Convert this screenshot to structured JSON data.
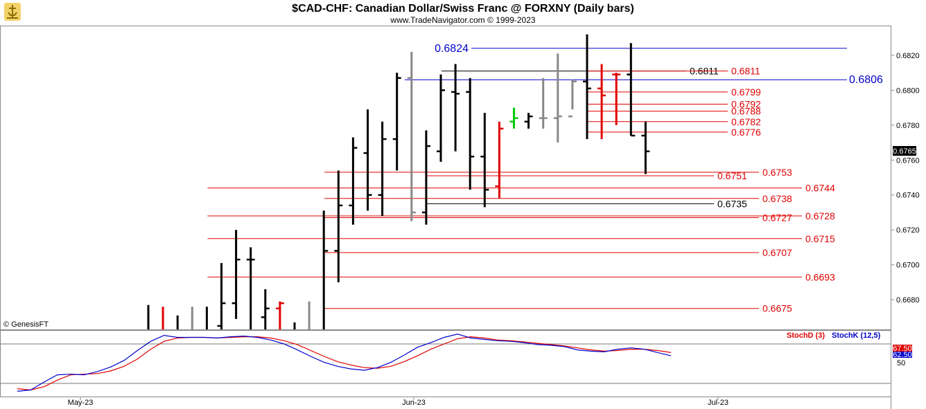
{
  "chart_data": {
    "type": "ohlc",
    "title": "$CAD-CHF:  Canadian Dollar/Swiss Franc @ FORXNY  (Daily bars)",
    "subtitle": "www.TradeNavigator.com © 1999-2023",
    "watermark": "© GenesisFT",
    "price_axis": {
      "ticks": [
        "0.6680",
        "0.6700",
        "0.6720",
        "0.6740",
        "0.6760",
        "0.6780",
        "0.6800",
        "0.6820"
      ],
      "range": [
        0.6663,
        0.6837
      ],
      "last_price": "0.6765"
    },
    "x_axis": {
      "ticks": [
        "May-23",
        "Jun-23",
        "Jul-23"
      ]
    },
    "bars": [
      {
        "h": 0.6677,
        "l": 0.665,
        "o": 0.666,
        "c": 0.666,
        "color": "#000000"
      },
      {
        "h": 0.6676,
        "l": 0.665,
        "o": 0.666,
        "c": 0.666,
        "color": "#e00000"
      },
      {
        "h": 0.6671,
        "l": 0.665,
        "o": 0.666,
        "c": 0.666,
        "color": "#000000"
      },
      {
        "h": 0.6676,
        "l": 0.665,
        "o": 0.666,
        "c": 0.666,
        "color": "#888888"
      },
      {
        "h": 0.6676,
        "l": 0.665,
        "o": 0.666,
        "c": 0.666,
        "color": "#000000"
      },
      {
        "h": 0.6701,
        "l": 0.665,
        "o": 0.6665,
        "c": 0.6678,
        "color": "#000000"
      },
      {
        "h": 0.672,
        "l": 0.6669,
        "o": 0.6678,
        "c": 0.6703,
        "color": "#000000"
      },
      {
        "h": 0.671,
        "l": 0.665,
        "o": 0.6703,
        "c": 0.6703,
        "color": "#000000"
      },
      {
        "h": 0.6686,
        "l": 0.6663,
        "o": 0.667,
        "c": 0.6675,
        "color": "#000000"
      },
      {
        "h": 0.6679,
        "l": 0.6663,
        "o": 0.6675,
        "c": 0.6678,
        "color": "#e00000"
      },
      {
        "h": 0.6667,
        "l": 0.6655,
        "o": 0.666,
        "c": 0.666,
        "color": "#000000"
      },
      {
        "h": 0.6679,
        "l": 0.665,
        "o": 0.666,
        "c": 0.666,
        "color": "#888888"
      },
      {
        "h": 0.6731,
        "l": 0.665,
        "o": 0.666,
        "c": 0.6708,
        "color": "#000000"
      },
      {
        "h": 0.6754,
        "l": 0.669,
        "o": 0.6708,
        "c": 0.6734,
        "color": "#000000"
      },
      {
        "h": 0.6773,
        "l": 0.6723,
        "o": 0.6734,
        "c": 0.6767,
        "color": "#000000"
      },
      {
        "h": 0.6789,
        "l": 0.6731,
        "o": 0.6764,
        "c": 0.674,
        "color": "#000000"
      },
      {
        "h": 0.6782,
        "l": 0.6728,
        "o": 0.674,
        "c": 0.6772,
        "color": "#000000"
      },
      {
        "h": 0.681,
        "l": 0.6754,
        "o": 0.6772,
        "c": 0.6807,
        "color": "#000000"
      },
      {
        "h": 0.6822,
        "l": 0.6725,
        "o": 0.6807,
        "c": 0.673,
        "color": "#888888"
      },
      {
        "h": 0.6777,
        "l": 0.6723,
        "o": 0.673,
        "c": 0.6768,
        "color": "#000000"
      },
      {
        "h": 0.6809,
        "l": 0.6759,
        "o": 0.6765,
        "c": 0.68,
        "color": "#000000"
      },
      {
        "h": 0.6815,
        "l": 0.6765,
        "o": 0.6799,
        "c": 0.6798,
        "color": "#000000"
      },
      {
        "h": 0.6807,
        "l": 0.6743,
        "o": 0.6799,
        "c": 0.6762,
        "color": "#000000"
      },
      {
        "h": 0.6787,
        "l": 0.6733,
        "o": 0.6762,
        "c": 0.6743,
        "color": "#000000"
      },
      {
        "h": 0.6782,
        "l": 0.6738,
        "o": 0.6745,
        "c": 0.6778,
        "color": "#e00000"
      },
      {
        "h": 0.679,
        "l": 0.6778,
        "o": 0.6782,
        "c": 0.6784,
        "color": "#00cc00"
      },
      {
        "h": 0.6787,
        "l": 0.6778,
        "o": 0.6782,
        "c": 0.6785,
        "color": "#000000"
      },
      {
        "h": 0.6807,
        "l": 0.6778,
        "o": 0.6784,
        "c": 0.6784,
        "color": "#888888"
      },
      {
        "h": 0.6821,
        "l": 0.677,
        "o": 0.6784,
        "c": 0.6785,
        "color": "#888888"
      },
      {
        "h": 0.6806,
        "l": 0.6789,
        "o": 0.6785,
        "c": 0.6805,
        "color": "#888888"
      },
      {
        "h": 0.6832,
        "l": 0.6772,
        "o": 0.6805,
        "c": 0.6801,
        "color": "#000000"
      },
      {
        "h": 0.6815,
        "l": 0.6772,
        "o": 0.6801,
        "c": 0.6797,
        "color": "#e00000"
      },
      {
        "h": 0.681,
        "l": 0.678,
        "o": 0.6809,
        "c": 0.6809,
        "color": "#e00000"
      },
      {
        "h": 0.6827,
        "l": 0.6774,
        "o": 0.6809,
        "c": 0.6774,
        "color": "#000000"
      },
      {
        "h": 0.6782,
        "l": 0.6752,
        "o": 0.6774,
        "c": 0.6765,
        "color": "#000000"
      }
    ],
    "levels": [
      {
        "value": 0.6824,
        "label": "0.6824",
        "color": "#0000cc",
        "style": "blue-major",
        "x_start_bar": 29,
        "x_end_bar": 0,
        "label_side": "left"
      },
      {
        "value": 0.6806,
        "label": "0.6806",
        "color": "#0000cc",
        "style": "blue-major",
        "x_start_bar": 18,
        "x_end_bar": 0,
        "label_side": "right"
      },
      {
        "value": 0.6811,
        "label": "0.6811",
        "color": "#000000",
        "style": "black",
        "x_start_bar": 20,
        "x_end_bar": 0,
        "label_side": "right"
      },
      {
        "value": 0.6811,
        "label": "0.6811",
        "color": "#e00000",
        "style": "red",
        "x_start_bar": 30,
        "x_end_bar": 0,
        "label_side": "right"
      },
      {
        "value": 0.6799,
        "label": "0.6799",
        "color": "#e00000",
        "style": "red",
        "x_start_bar": 30,
        "x_end_bar": 0,
        "label_side": "right"
      },
      {
        "value": 0.6792,
        "label": "0.6792",
        "color": "#e00000",
        "style": "red",
        "x_start_bar": 30,
        "x_end_bar": 0,
        "label_side": "right"
      },
      {
        "value": 0.6788,
        "label": "0.6788",
        "color": "#e00000",
        "style": "red",
        "x_start_bar": 30,
        "x_end_bar": 0,
        "label_side": "right"
      },
      {
        "value": 0.6782,
        "label": "0.6782",
        "color": "#e00000",
        "style": "red",
        "x_start_bar": 30,
        "x_end_bar": 0,
        "label_side": "right"
      },
      {
        "value": 0.6776,
        "label": "0.6776",
        "color": "#e00000",
        "style": "red",
        "x_start_bar": 30,
        "x_end_bar": 0,
        "label_side": "right"
      },
      {
        "value": 0.6753,
        "label": "0.6753",
        "color": "#e00000",
        "style": "red",
        "x_start_bar": 12,
        "x_end_bar": 0,
        "label_side": "right"
      },
      {
        "value": 0.6751,
        "label": "0.6751",
        "color": "#e00000",
        "style": "red",
        "x_start_bar": 19,
        "x_end_bar": 0,
        "label_side": "right"
      },
      {
        "value": 0.6744,
        "label": "0.6744",
        "color": "#e00000",
        "style": "red",
        "x_start_bar": 4,
        "x_end_bar": 0,
        "label_side": "right"
      },
      {
        "value": 0.6738,
        "label": "0.6738",
        "color": "#e00000",
        "style": "red",
        "x_start_bar": 12,
        "x_end_bar": 0,
        "label_side": "right"
      },
      {
        "value": 0.6735,
        "label": "0.6735",
        "color": "#000000",
        "style": "black",
        "x_start_bar": 19,
        "x_end_bar": 0,
        "label_side": "right"
      },
      {
        "value": 0.6727,
        "label": "0.6727",
        "color": "#e00000",
        "style": "red",
        "x_start_bar": 12,
        "x_end_bar": 0,
        "label_side": "right"
      },
      {
        "value": 0.6728,
        "label": "0.6728",
        "color": "#e00000",
        "style": "red",
        "x_start_bar": 4,
        "x_end_bar": 0,
        "label_side": "right"
      },
      {
        "value": 0.6715,
        "label": "0.6715",
        "color": "#e00000",
        "style": "red",
        "x_start_bar": 4,
        "x_end_bar": 0,
        "label_side": "right"
      },
      {
        "value": 0.6707,
        "label": "0.6707",
        "color": "#e00000",
        "style": "red",
        "x_start_bar": 12,
        "x_end_bar": 0,
        "label_side": "right"
      },
      {
        "value": 0.6693,
        "label": "0.6693",
        "color": "#e00000",
        "style": "red",
        "x_start_bar": 4,
        "x_end_bar": 0,
        "label_side": "right"
      },
      {
        "value": 0.6675,
        "label": "0.6675",
        "color": "#e00000",
        "style": "red",
        "x_start_bar": 12,
        "x_end_bar": 0,
        "label_side": "right"
      }
    ],
    "indicator": {
      "stochD_label": "StochD (3)",
      "stochK_label": "StochK (12,5)",
      "stochD_value": "67.50",
      "stochK_value": "62.50",
      "tick": "50",
      "range": [
        0,
        100
      ],
      "stochK": [
        8,
        10,
        22,
        33,
        34,
        33,
        38,
        45,
        55,
        70,
        84,
        93,
        90,
        90,
        90,
        89,
        91,
        92,
        90,
        86,
        80,
        71,
        61,
        52,
        46,
        42,
        40,
        44,
        52,
        63,
        75,
        82,
        90,
        95,
        89,
        87,
        85,
        84,
        82,
        79,
        78,
        76,
        71,
        69,
        68,
        72,
        74,
        72,
        67,
        62
      ],
      "stochD": [
        12,
        10,
        15,
        25,
        33,
        34,
        35,
        39,
        46,
        57,
        72,
        84,
        89,
        90,
        90,
        89,
        90,
        91,
        91,
        89,
        85,
        79,
        70,
        61,
        53,
        48,
        44,
        43,
        46,
        53,
        62,
        72,
        80,
        88,
        91,
        89,
        86,
        85,
        83,
        81,
        79,
        77,
        74,
        71,
        69,
        70,
        72,
        72,
        70,
        67
      ]
    }
  }
}
